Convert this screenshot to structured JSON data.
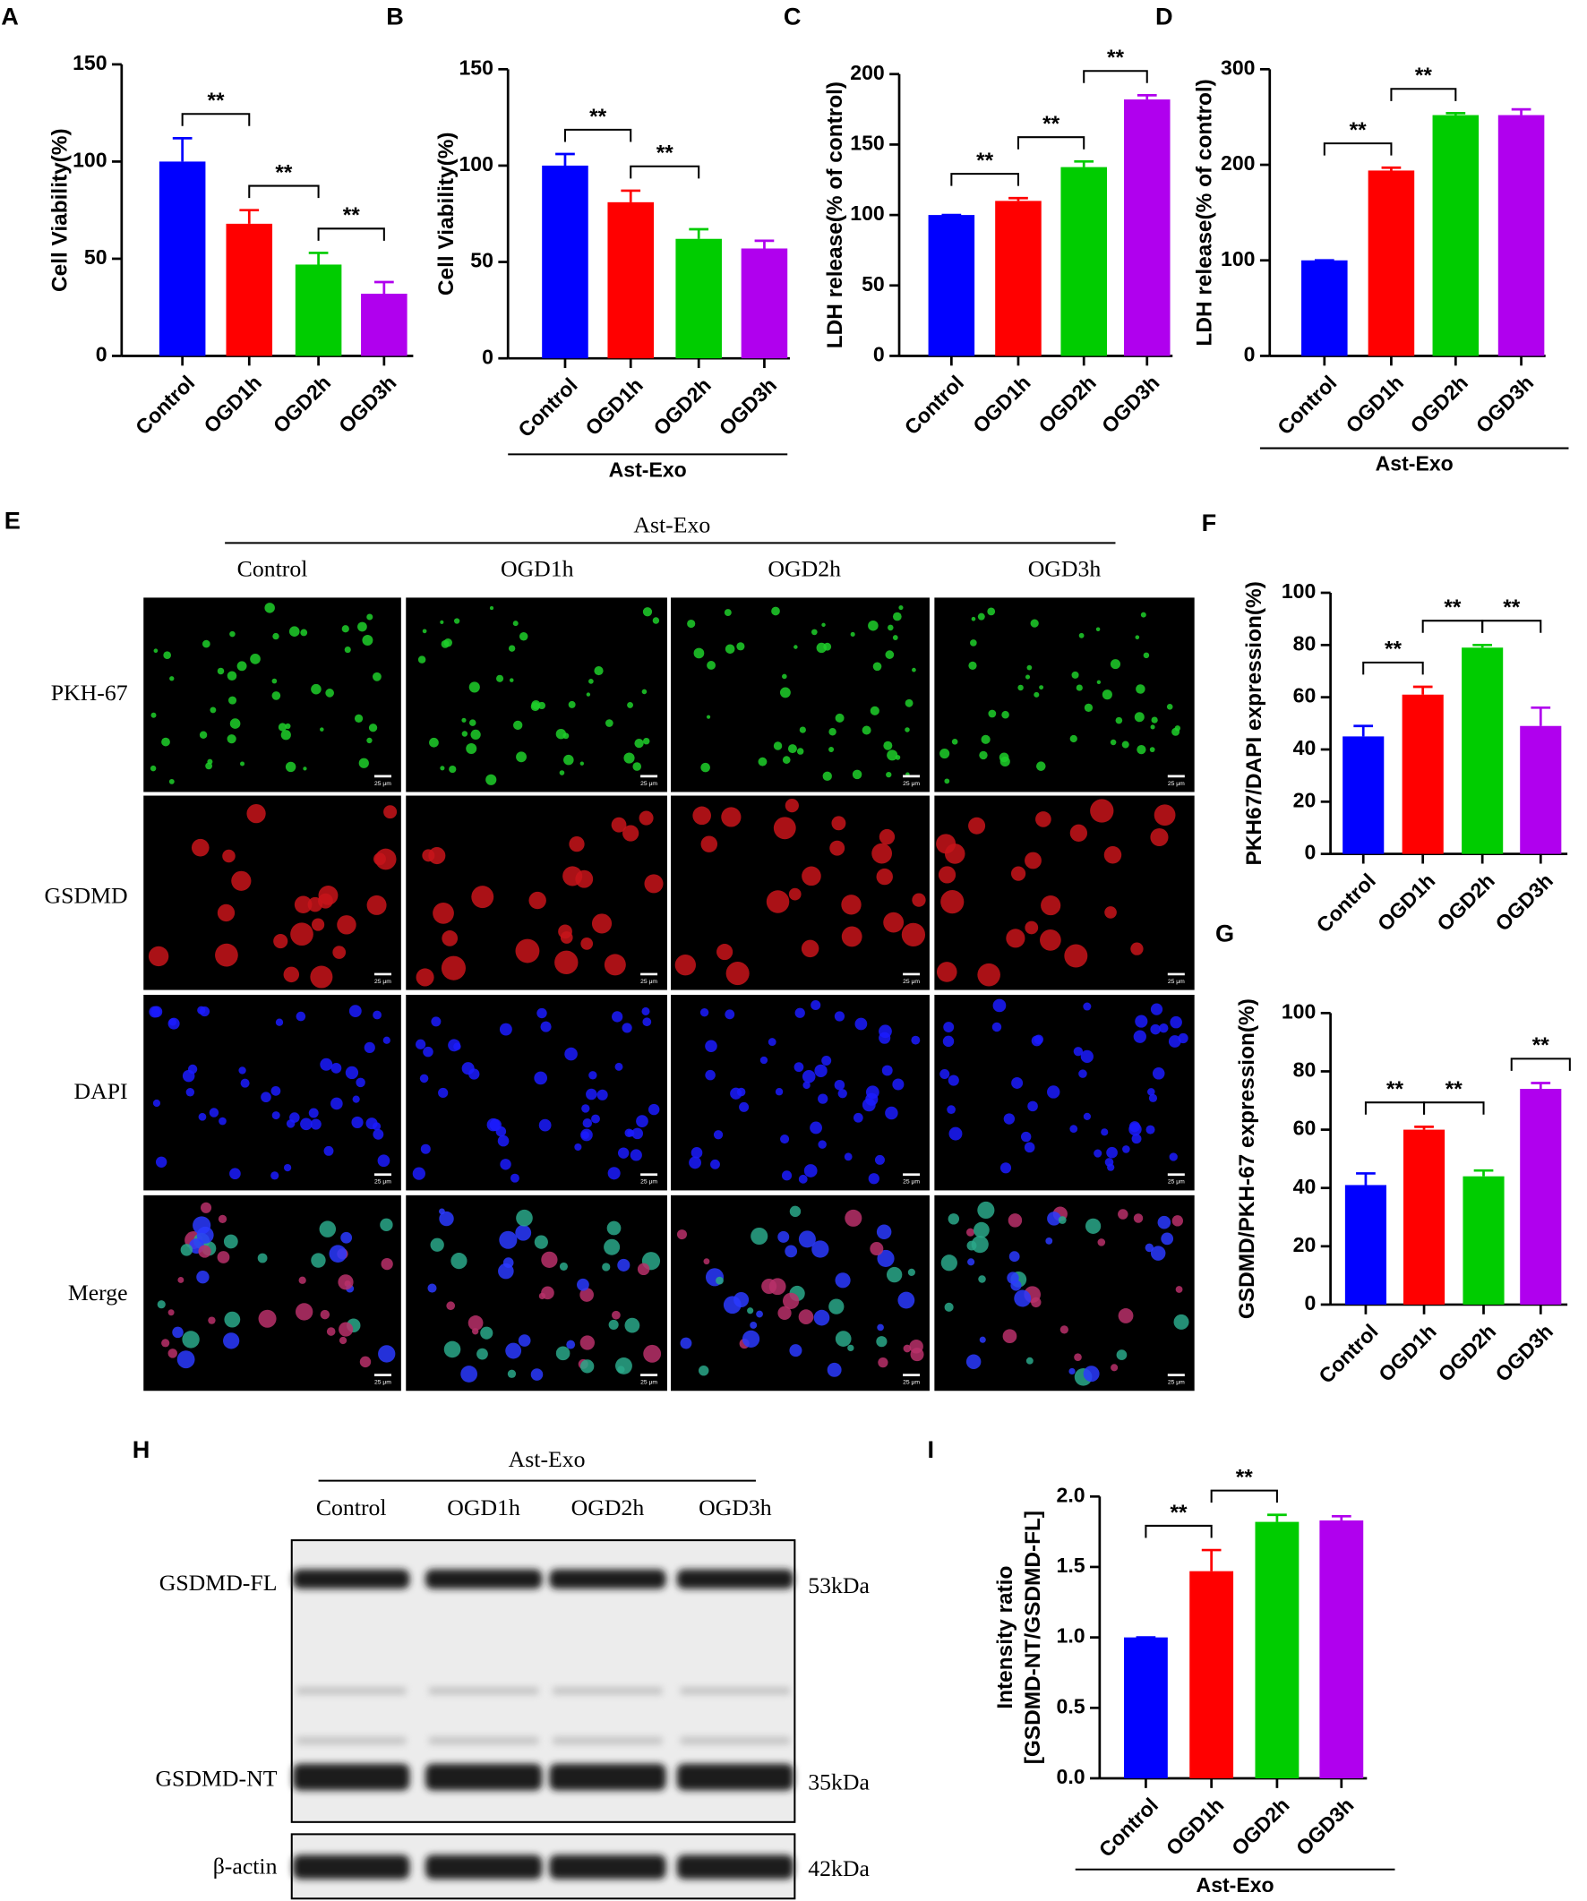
{
  "chart_data": [
    {
      "type": "bar",
      "panel": "A",
      "ylabel": "Cell  Viability(%)",
      "categories": [
        "Control",
        "OGD1h",
        "OGD2h",
        "OGD3h"
      ],
      "values": [
        100,
        68,
        47,
        32
      ],
      "errors": [
        12,
        7,
        6,
        6
      ],
      "colors": [
        "#0000ff",
        "#ff0000",
        "#00cc00",
        "#b000ee"
      ],
      "ylim": [
        0,
        150
      ],
      "yticks": [
        0,
        50,
        100,
        150
      ],
      "annotations": [
        {
          "label": "**",
          "from": 0,
          "to": 1
        },
        {
          "label": "**",
          "from": 1,
          "to": 2
        },
        {
          "label": "**",
          "from": 2,
          "to": 3
        }
      ]
    },
    {
      "type": "bar",
      "panel": "B",
      "ylabel": "Cell  Viability(%)",
      "categories": [
        "Control",
        "OGD1h",
        "OGD2h",
        "OGD3h"
      ],
      "values": [
        100,
        81,
        62,
        57
      ],
      "errors": [
        6,
        6,
        5,
        4
      ],
      "colors": [
        "#0000ff",
        "#ff0000",
        "#00cc00",
        "#b000ee"
      ],
      "ylim": [
        0,
        150
      ],
      "yticks": [
        0,
        50,
        100,
        150
      ],
      "annotations": [
        {
          "label": "**",
          "from": 0,
          "to": 1
        },
        {
          "label": "**",
          "from": 1,
          "to": 2
        }
      ],
      "group_label": "Ast-Exo"
    },
    {
      "type": "bar",
      "panel": "C",
      "ylabel": "LDH release(% of control)",
      "categories": [
        "Control",
        "OGD1h",
        "OGD2h",
        "OGD3h"
      ],
      "values": [
        100,
        110,
        134,
        182
      ],
      "errors": [
        0,
        2,
        4,
        3
      ],
      "colors": [
        "#0000ff",
        "#ff0000",
        "#00cc00",
        "#b000ee"
      ],
      "ylim": [
        0,
        200
      ],
      "yticks": [
        0,
        50,
        100,
        150,
        200
      ],
      "annotations": [
        {
          "label": "**",
          "from": 0,
          "to": 1
        },
        {
          "label": "**",
          "from": 1,
          "to": 2
        },
        {
          "label": "**",
          "from": 2,
          "to": 3
        }
      ]
    },
    {
      "type": "bar",
      "panel": "D",
      "ylabel": "LDH release(% of control)",
      "categories": [
        "Control",
        "OGD1h",
        "OGD2h",
        "OGD3h"
      ],
      "values": [
        100,
        194,
        252,
        252
      ],
      "errors": [
        0,
        3,
        2,
        6
      ],
      "colors": [
        "#0000ff",
        "#ff0000",
        "#00cc00",
        "#b000ee"
      ],
      "ylim": [
        0,
        300
      ],
      "yticks": [
        0,
        100,
        200,
        300
      ],
      "annotations": [
        {
          "label": "**",
          "from": 0,
          "to": 1
        },
        {
          "label": "**",
          "from": 1,
          "to": 2
        }
      ],
      "group_label": "Ast-Exo"
    },
    {
      "type": "bar",
      "panel": "F",
      "ylabel": "PKH67/DAPI expression(%)",
      "categories": [
        "Control",
        "OGD1h",
        "OGD2h",
        "OGD3h"
      ],
      "values": [
        45,
        61,
        79,
        49
      ],
      "errors": [
        4,
        3,
        1,
        7
      ],
      "colors": [
        "#0000ff",
        "#ff0000",
        "#00cc00",
        "#b000ee"
      ],
      "ylim": [
        0,
        100
      ],
      "yticks": [
        0,
        20,
        40,
        60,
        80,
        100
      ],
      "annotations": [
        {
          "label": "**",
          "from": 0,
          "to": 1
        },
        {
          "label": "**",
          "from": 1,
          "to": 2
        },
        {
          "label": "**",
          "from": 2,
          "to": 3
        }
      ]
    },
    {
      "type": "bar",
      "panel": "G",
      "ylabel": "GSDMD/PKH-67 expression(%)",
      "categories": [
        "Control",
        "OGD1h",
        "OGD2h",
        "OGD3h"
      ],
      "values": [
        41,
        60,
        44,
        74
      ],
      "errors": [
        4,
        1,
        2,
        2
      ],
      "colors": [
        "#0000ff",
        "#ff0000",
        "#00cc00",
        "#b000ee"
      ],
      "ylim": [
        0,
        100
      ],
      "yticks": [
        0,
        20,
        40,
        60,
        80,
        100
      ],
      "annotations": [
        {
          "label": "**",
          "from": 0,
          "to": 1
        },
        {
          "label": "**",
          "from": 1,
          "to": 2
        },
        {
          "label": "**",
          "from": 3,
          "to": 3
        }
      ]
    },
    {
      "type": "bar",
      "panel": "I",
      "ylabel": [
        "Intensity ratio",
        "[GSDMD-NT/GSDMD-FL]"
      ],
      "categories": [
        "Control",
        "OGD1h",
        "OGD2h",
        "OGD3h"
      ],
      "values": [
        1.0,
        1.47,
        1.82,
        1.83
      ],
      "errors": [
        0,
        0.15,
        0.05,
        0.03
      ],
      "colors": [
        "#0000ff",
        "#ff0000",
        "#00cc00",
        "#b000ee"
      ],
      "ylim": [
        0,
        2.0
      ],
      "yticks": [
        {
          "value": 0,
          "label": "0.0"
        },
        {
          "value": 0.5,
          "label": "0.5"
        },
        {
          "value": 1,
          "label": "1.0"
        },
        {
          "value": 1.5,
          "label": "1.5"
        },
        {
          "value": 2,
          "label": "2.0"
        }
      ],
      "annotations": [
        {
          "label": "**",
          "from": 0,
          "to": 1
        },
        {
          "label": "**",
          "from": 1,
          "to": 2
        }
      ],
      "group_label": "Ast-Exo"
    }
  ],
  "microscopy": {
    "panel": "E",
    "header": "Ast-Exo",
    "columns": [
      "Control",
      "OGD1h",
      "OGD2h",
      "OGD3h"
    ],
    "rows": [
      "PKH-67",
      "GSDMD",
      "DAPI",
      "Merge"
    ],
    "scale_bar": "25 μm"
  },
  "western_blot": {
    "panel": "H",
    "header": "Ast-Exo",
    "columns": [
      "Control",
      "OGD1h",
      "OGD2h",
      "OGD3h"
    ],
    "bands": [
      {
        "name": "GSDMD-FL",
        "size": "53kDa"
      },
      {
        "name": "GSDMD-NT",
        "size": "35kDa"
      },
      {
        "name": "β-actin",
        "size": "42kDa"
      }
    ]
  }
}
